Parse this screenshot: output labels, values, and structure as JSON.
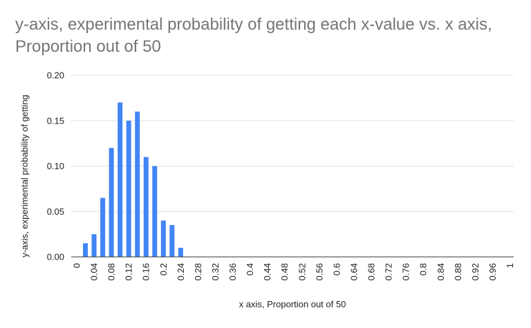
{
  "chart_data": {
    "type": "bar",
    "title": "y-axis, experimental probability of getting each x-value vs. x axis, Proportion out of 50",
    "xlabel": "x axis, Proportion out of 50",
    "ylabel": "y-axis, experimental probability of getting",
    "ylim": [
      0,
      0.2
    ],
    "yticks": [
      "0.00",
      "0.05",
      "0.10",
      "0.15",
      "0.20"
    ],
    "grid": true,
    "legend": "none",
    "bar_color": "#4285f4",
    "categories": [
      "0",
      "0.02",
      "0.04",
      "0.06",
      "0.08",
      "0.1",
      "0.12",
      "0.14",
      "0.16",
      "0.18",
      "0.2",
      "0.22",
      "0.24",
      "0.26",
      "0.28",
      "0.3",
      "0.32",
      "0.34",
      "0.36",
      "0.38",
      "0.4",
      "0.42",
      "0.44",
      "0.46",
      "0.48",
      "0.5",
      "0.52",
      "0.54",
      "0.56",
      "0.58",
      "0.6",
      "0.62",
      "0.64",
      "0.66",
      "0.68",
      "0.7",
      "0.72",
      "0.74",
      "0.76",
      "0.78",
      "0.8",
      "0.82",
      "0.84",
      "0.86",
      "0.88",
      "0.9",
      "0.92",
      "0.94",
      "0.96",
      "0.98",
      "1"
    ],
    "x_tick_labels": [
      "0",
      "0.04",
      "0.08",
      "0.12",
      "0.16",
      "0.2",
      "0.24",
      "0.28",
      "0.32",
      "0.36",
      "0.4",
      "0.44",
      "0.48",
      "0.52",
      "0.56",
      "0.6",
      "0.64",
      "0.68",
      "0.72",
      "0.76",
      "0.8",
      "0.84",
      "0.88",
      "0.92",
      "0.96",
      "1"
    ],
    "values": [
      0,
      0.015,
      0.025,
      0.065,
      0.12,
      0.17,
      0.15,
      0.16,
      0.11,
      0.1,
      0.04,
      0.035,
      0.01,
      0,
      0,
      0,
      0,
      0,
      0,
      0,
      0,
      0,
      0,
      0,
      0,
      0,
      0,
      0,
      0,
      0,
      0,
      0,
      0,
      0,
      0,
      0,
      0,
      0,
      0,
      0,
      0,
      0,
      0,
      0,
      0,
      0,
      0,
      0,
      0,
      0,
      0
    ]
  }
}
